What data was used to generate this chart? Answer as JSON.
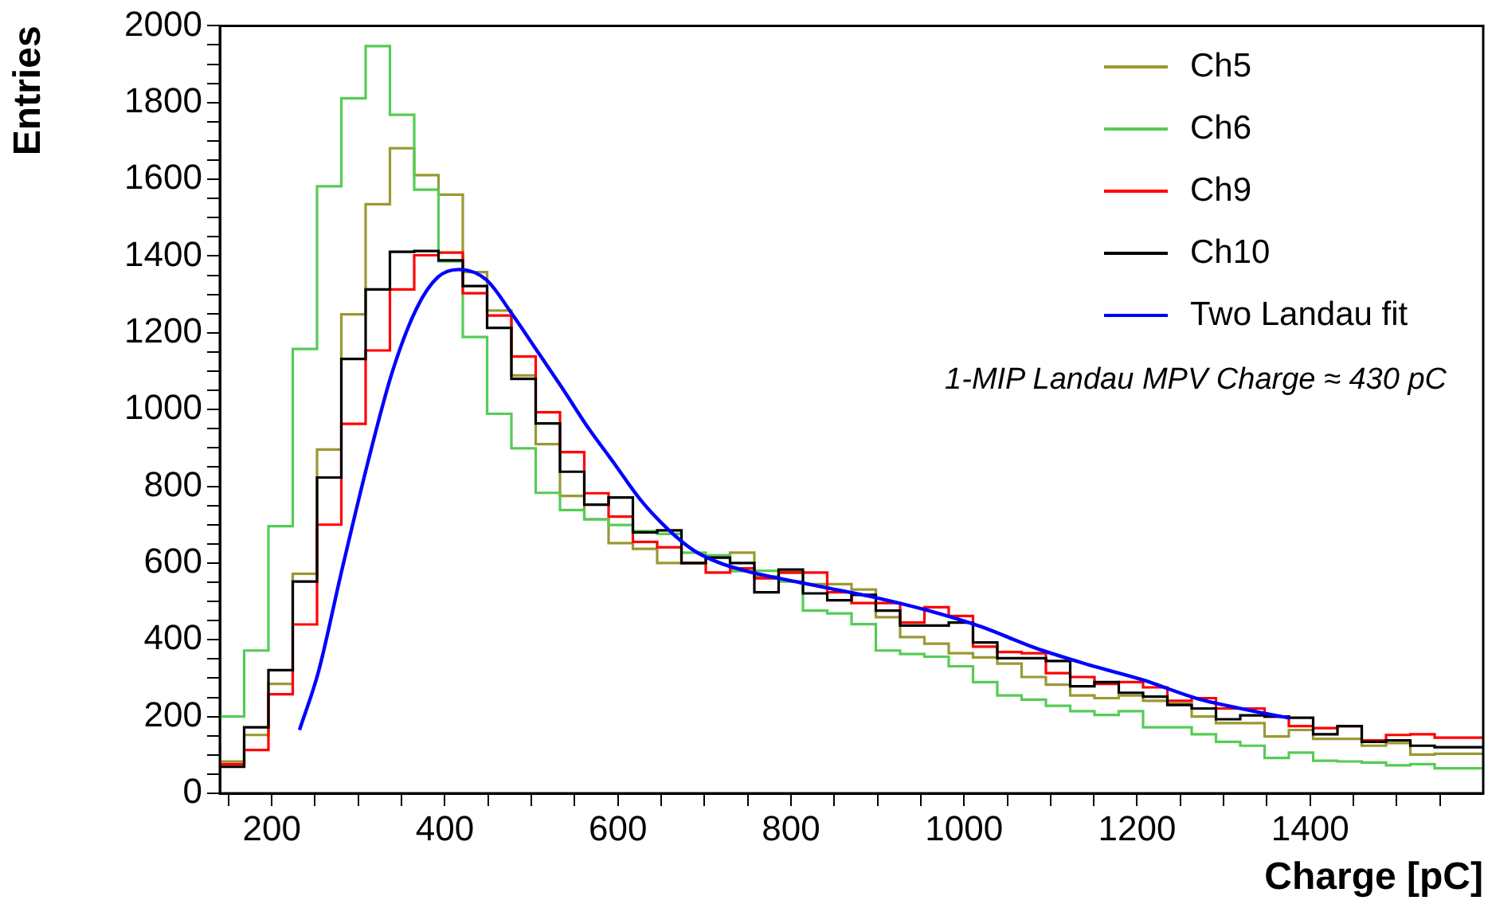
{
  "chart_data": {
    "type": "step",
    "xlabel": "Charge [pC]",
    "ylabel": "Entries",
    "legend": "top right",
    "annotations": [
      "1-MIP Landau MPV Charge ≈ 430 pC"
    ],
    "x": [
      140,
      168.08,
      196.15,
      224.23,
      252.31,
      280.38,
      308.46,
      336.54,
      364.62,
      392.69,
      420.77,
      448.85,
      476.92,
      505,
      533.08,
      561.15,
      589.23,
      617.31,
      645.38,
      673.46,
      701.54,
      729.62,
      757.69,
      785.77,
      813.85,
      841.92,
      870,
      898.08,
      926.15,
      954.23,
      982.31,
      1010.38,
      1038.46,
      1066.54,
      1094.62,
      1122.69,
      1150.77,
      1178.85,
      1206.92,
      1235,
      1263.08,
      1291.15,
      1319.23,
      1347.31,
      1375.38,
      1403.46,
      1431.54,
      1459.62,
      1487.69,
      1515.77,
      1543.85,
      1571.92,
      1600
    ],
    "series": [
      {
        "name": "Ch5",
        "color": "#999933",
        "values": [
          117,
          83,
          152,
          285,
          572,
          896,
          1248,
          1535,
          1681,
          1611,
          1560,
          1358,
          1258,
          1089,
          910,
          775,
          714,
          652,
          637,
          600,
          600,
          620,
          627,
          565,
          575,
          545,
          545,
          531,
          459,
          407,
          390,
          365,
          354,
          338,
          303,
          283,
          255,
          248,
          255,
          241,
          234,
          200,
          183,
          183,
          148,
          165,
          142,
          142,
          124,
          131,
          101,
          103,
          103
        ]
      },
      {
        "name": "Ch6",
        "color": "#55cc55",
        "values": [
          124,
          200,
          372,
          696,
          1158,
          1582,
          1811,
          1947,
          1768,
          1573,
          1386,
          1189,
          989,
          899,
          783,
          738,
          714,
          699,
          683,
          676,
          627,
          620,
          579,
          580,
          552,
          476,
          469,
          441,
          372,
          363,
          356,
          331,
          290,
          255,
          244,
          228,
          214,
          204,
          214,
          172,
          172,
          154,
          134,
          124,
          92,
          106,
          85,
          83,
          80,
          73,
          76,
          65,
          65
        ]
      },
      {
        "name": "Ch9",
        "color": "#ff0000",
        "values": [
          87,
          76,
          113,
          258,
          440,
          700,
          963,
          1154,
          1313,
          1402,
          1409,
          1303,
          1245,
          1138,
          993,
          889,
          782,
          721,
          655,
          641,
          600,
          575,
          586,
          560,
          575,
          575,
          524,
          496,
          496,
          445,
          485,
          462,
          382,
          368,
          365,
          313,
          303,
          285,
          290,
          276,
          241,
          248,
          221,
          221,
          200,
          175,
          170,
          175,
          138,
          152,
          154,
          145,
          145
        ]
      },
      {
        "name": "Ch10",
        "color": "#000000",
        "values": [
          69,
          69,
          172,
          321,
          552,
          823,
          1132,
          1313,
          1411,
          1413,
          1389,
          1322,
          1213,
          1080,
          964,
          838,
          752,
          771,
          680,
          685,
          600,
          614,
          600,
          524,
          583,
          521,
          503,
          517,
          476,
          437,
          437,
          445,
          393,
          352,
          352,
          345,
          279,
          290,
          262,
          252,
          230,
          221,
          193,
          203,
          200,
          197,
          154,
          175,
          134,
          138,
          124,
          120,
          120
        ]
      },
      {
        "name": "Two Landau fit",
        "type": "line",
        "color": "#0000ff",
        "x": [
          232,
          254,
          280,
          311,
          339,
          367,
          392,
          416,
          448,
          478,
          509,
          536,
          564,
          595,
          626,
          657,
          687,
          718,
          749,
          811,
          836,
          898,
          959,
          1020,
          1082,
          1144,
          1206,
          1268,
          1330,
          1376
        ],
        "values": [
          165,
          317,
          572,
          862,
          1096,
          1262,
          1345,
          1365,
          1338,
          1248,
          1145,
          1055,
          958,
          862,
          765,
          690,
          634,
          600,
          579,
          549,
          538,
          510,
          476,
          434,
          379,
          335,
          296,
          248,
          216,
          196
        ]
      }
    ],
    "xlim": [
      140,
      1600
    ],
    "ylim": [
      0,
      2000
    ],
    "xticks": [
      {
        "value": 150,
        "label": null
      },
      200,
      {
        "value": 250,
        "label": null
      },
      {
        "value": 300,
        "label": null
      },
      {
        "value": 350,
        "label": null
      },
      400,
      {
        "value": 450,
        "label": null
      },
      {
        "value": 500,
        "label": null
      },
      {
        "value": 550,
        "label": null
      },
      600,
      {
        "value": 650,
        "label": null
      },
      {
        "value": 700,
        "label": null
      },
      {
        "value": 750,
        "label": null
      },
      800,
      {
        "value": 850,
        "label": null
      },
      {
        "value": 900,
        "label": null
      },
      {
        "value": 950,
        "label": null
      },
      1000,
      {
        "value": 1050,
        "label": null
      },
      {
        "value": 1100,
        "label": null
      },
      {
        "value": 1150,
        "label": null
      },
      1200,
      {
        "value": 1250,
        "label": null
      },
      {
        "value": 1300,
        "label": null
      },
      {
        "value": 1350,
        "label": null
      },
      1400,
      {
        "value": 1450,
        "label": null
      },
      {
        "value": 1500,
        "label": null
      },
      {
        "value": 1550,
        "label": null
      }
    ],
    "yticks": [
      0,
      {
        "value": 50,
        "label": null
      },
      {
        "value": 100,
        "label": null
      },
      {
        "value": 150,
        "label": null
      },
      200,
      {
        "value": 250,
        "label": null
      },
      {
        "value": 300,
        "label": null
      },
      {
        "value": 350,
        "label": null
      },
      400,
      {
        "value": 450,
        "label": null
      },
      {
        "value": 500,
        "label": null
      },
      {
        "value": 550,
        "label": null
      },
      600,
      {
        "value": 650,
        "label": null
      },
      {
        "value": 700,
        "label": null
      },
      {
        "value": 750,
        "label": null
      },
      800,
      {
        "value": 850,
        "label": null
      },
      {
        "value": 900,
        "label": null
      },
      {
        "value": 950,
        "label": null
      },
      1000,
      {
        "value": 1050,
        "label": null
      },
      {
        "value": 1100,
        "label": null
      },
      {
        "value": 1150,
        "label": null
      },
      1200,
      {
        "value": 1250,
        "label": null
      },
      {
        "value": 1300,
        "label": null
      },
      {
        "value": 1350,
        "label": null
      },
      1400,
      {
        "value": 1450,
        "label": null
      },
      {
        "value": 1500,
        "label": null
      },
      {
        "value": 1550,
        "label": null
      },
      1600,
      {
        "value": 1650,
        "label": null
      },
      {
        "value": 1700,
        "label": null
      },
      {
        "value": 1750,
        "label": null
      },
      1800,
      {
        "value": 1850,
        "label": null
      },
      {
        "value": 1900,
        "label": null
      },
      {
        "value": 1950,
        "label": null
      },
      2000
    ]
  }
}
